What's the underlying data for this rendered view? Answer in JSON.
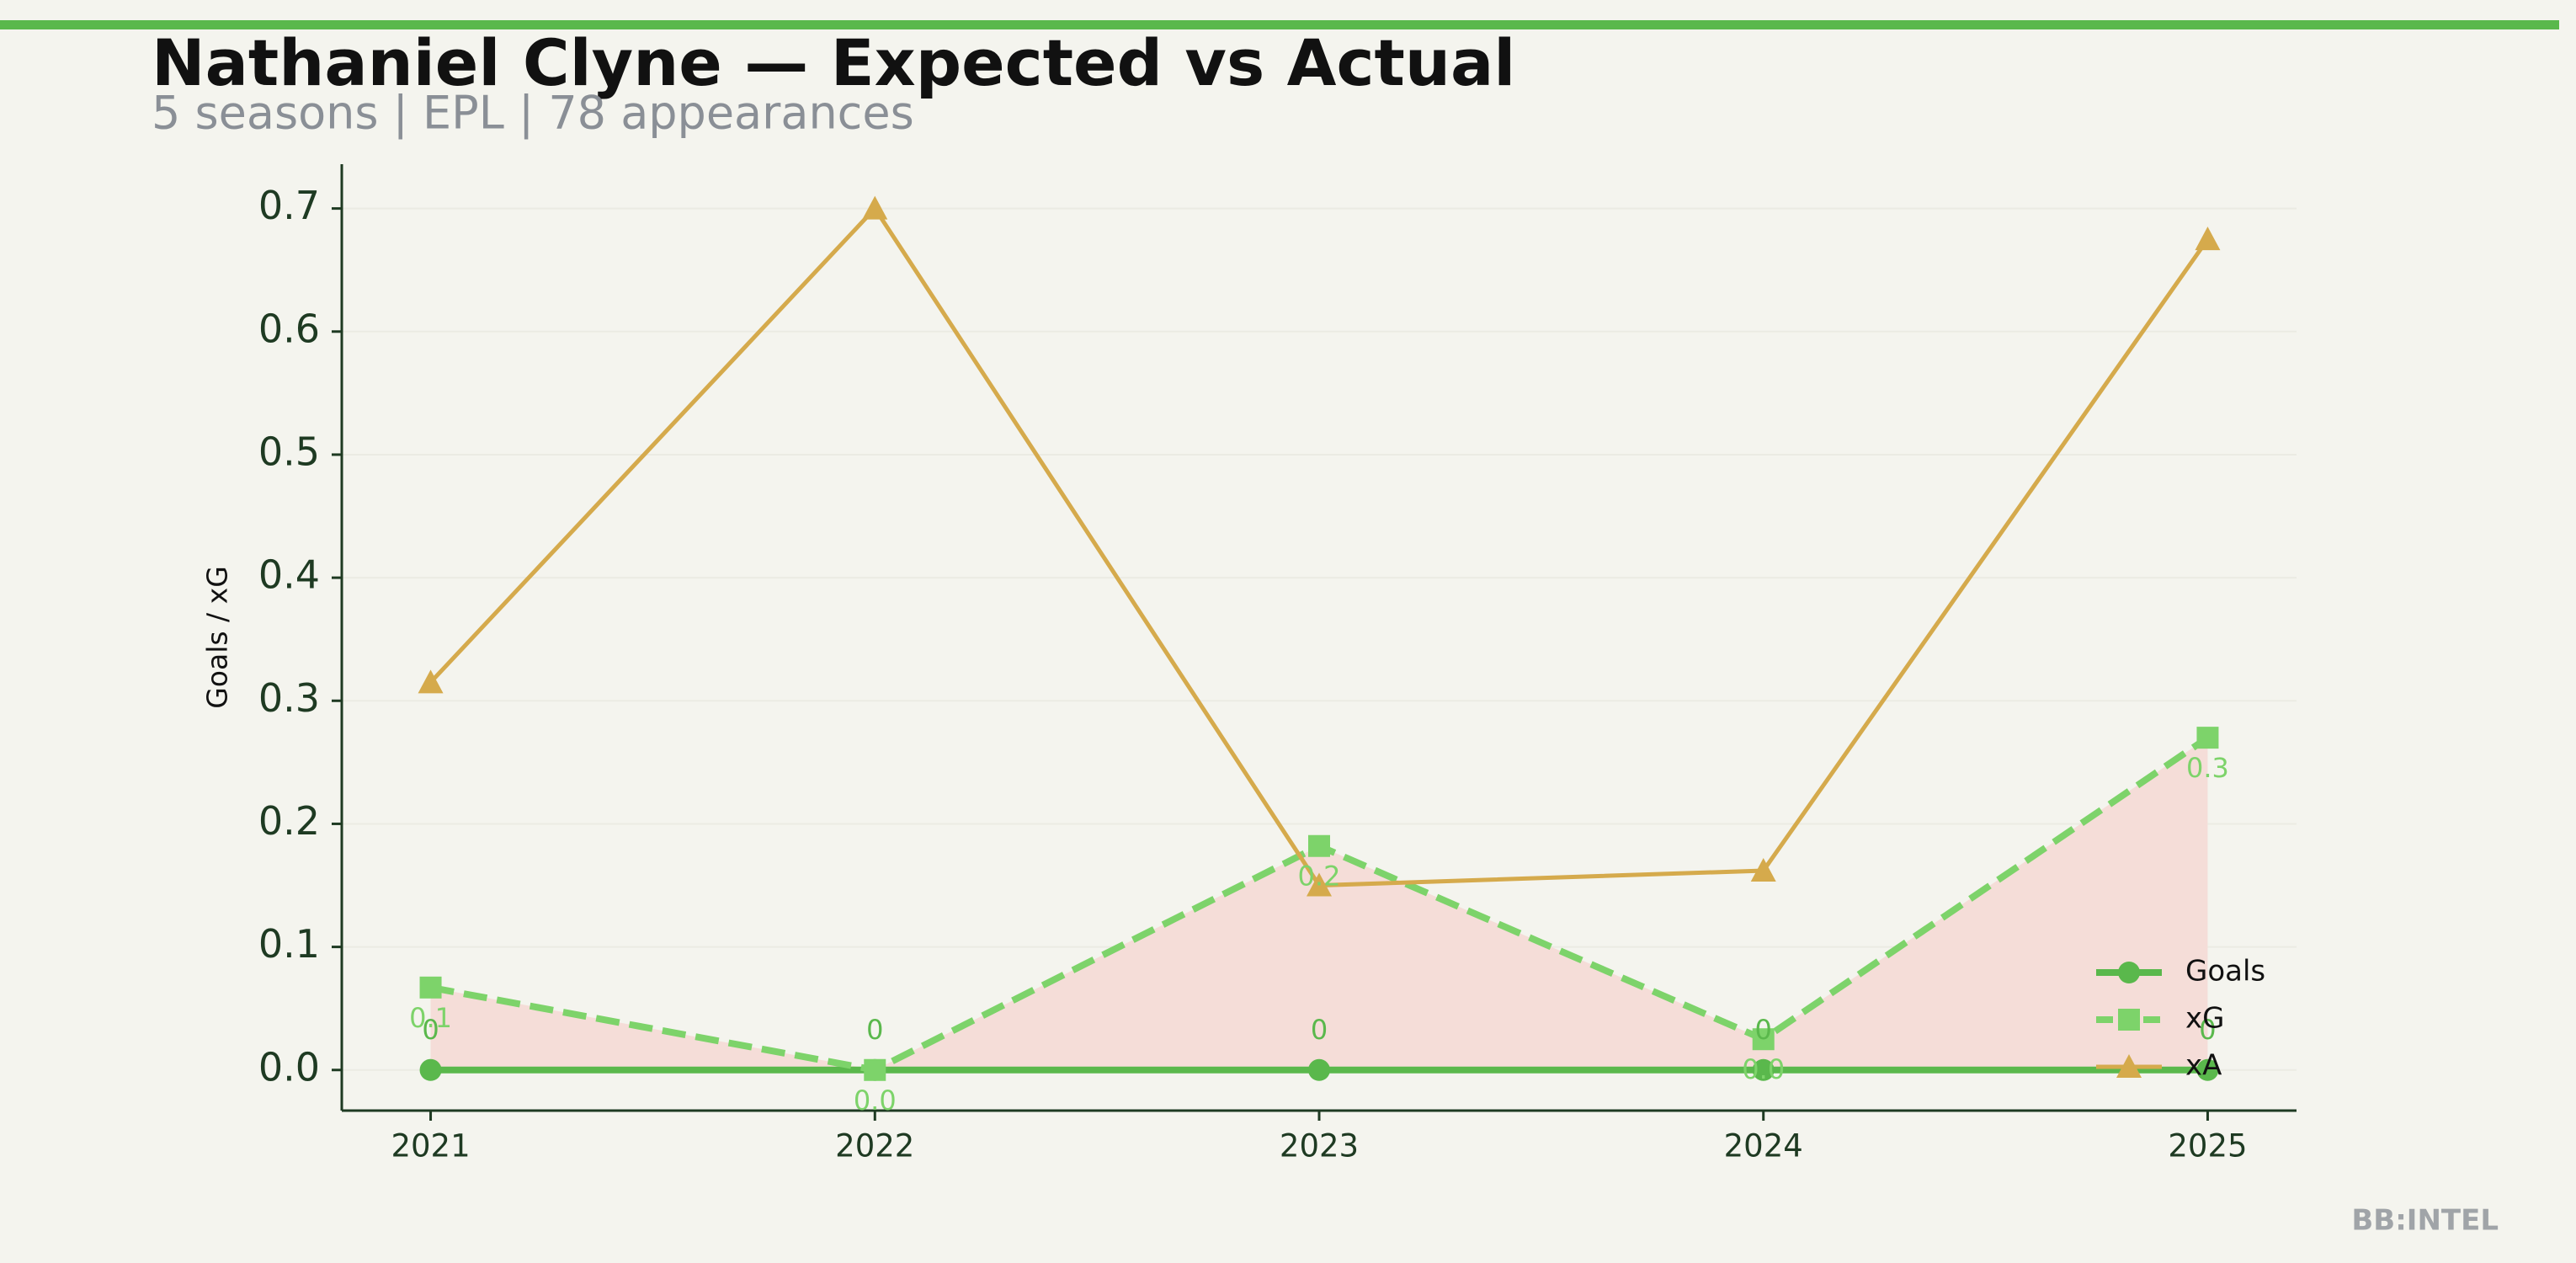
{
  "chart_data": {
    "type": "line",
    "title": "Nathaniel Clyne — Expected vs Actual",
    "subtitle": "5 seasons | EPL | 78 appearances",
    "ylabel": "Goals / xG",
    "footer": "BB:INTEL",
    "categories": [
      "2021",
      "2022",
      "2023",
      "2024",
      "2025"
    ],
    "series": [
      {
        "name": "Goals",
        "color": "#5ab84c",
        "marker": "circle",
        "dash": "solid",
        "values": [
          0,
          0,
          0,
          0,
          0
        ]
      },
      {
        "name": "xG",
        "color": "#7dd36a",
        "marker": "square",
        "dash": "dashed",
        "values": [
          0.067,
          0.0,
          0.182,
          0.025,
          0.27
        ],
        "value_labels": [
          "0.1",
          "0.0",
          "0.2",
          "0.0",
          "0.3"
        ]
      },
      {
        "name": "xA",
        "color": "#d5aa4c",
        "marker": "triangle",
        "dash": "solid",
        "values": [
          0.315,
          0.7,
          0.15,
          0.162,
          0.675
        ]
      }
    ],
    "fill_between_color": "#f5ddd8",
    "ylim": [
      -0.033,
      0.736
    ],
    "yticks": [
      {
        "value": 0,
        "label": "0.0"
      },
      0.1,
      0.2,
      0.3,
      0.4,
      0.5,
      0.6,
      0.7
    ],
    "grid": true,
    "legend": "lower right"
  }
}
